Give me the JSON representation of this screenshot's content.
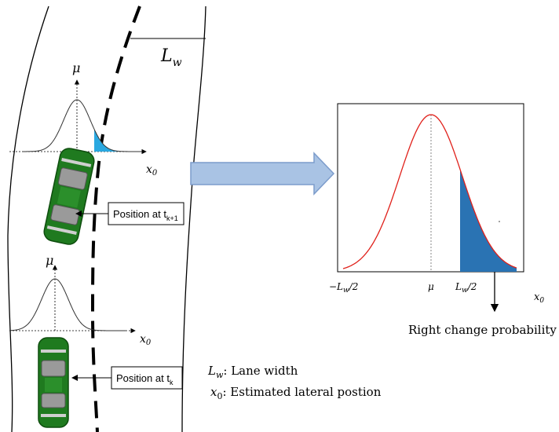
{
  "road": {
    "lane_width_symbol": "L",
    "lane_width_sub": "w"
  },
  "upper_plot": {
    "mu": "μ",
    "x_axis": "x",
    "x_sub": "0"
  },
  "lower_plot": {
    "mu": "μ",
    "x_axis": "x",
    "x_sub": "0"
  },
  "labels": {
    "position_k1_text": "Position at t",
    "position_k1_sub": "k+1",
    "position_k_text": "Position at t",
    "position_k_sub": "k"
  },
  "legend": {
    "lw_symbol": "L",
    "lw_sub": "w",
    "lw_desc": ": Lane width",
    "x0_symbol": "x",
    "x0_sub": "0",
    "x0_desc": ": Estimated lateral postion"
  },
  "right_chart": {
    "tick_left_sym": "−L",
    "tick_left_sub": "w",
    "tick_left_tail": "/2",
    "tick_mu": "μ",
    "tick_right_sym": "L",
    "tick_right_sub": "w",
    "tick_right_tail": "/2",
    "x_axis": "x",
    "x_sub": "0",
    "annotation": "Right change probability"
  },
  "colors": {
    "car_body": "#1f7a1f",
    "shade_small": "#2aa8e0",
    "shade_big": "#2a73b3",
    "curve_red": "#e0201a",
    "arrow_fill": "#a9c3e4",
    "arrow_stroke": "#7c9ccb"
  }
}
